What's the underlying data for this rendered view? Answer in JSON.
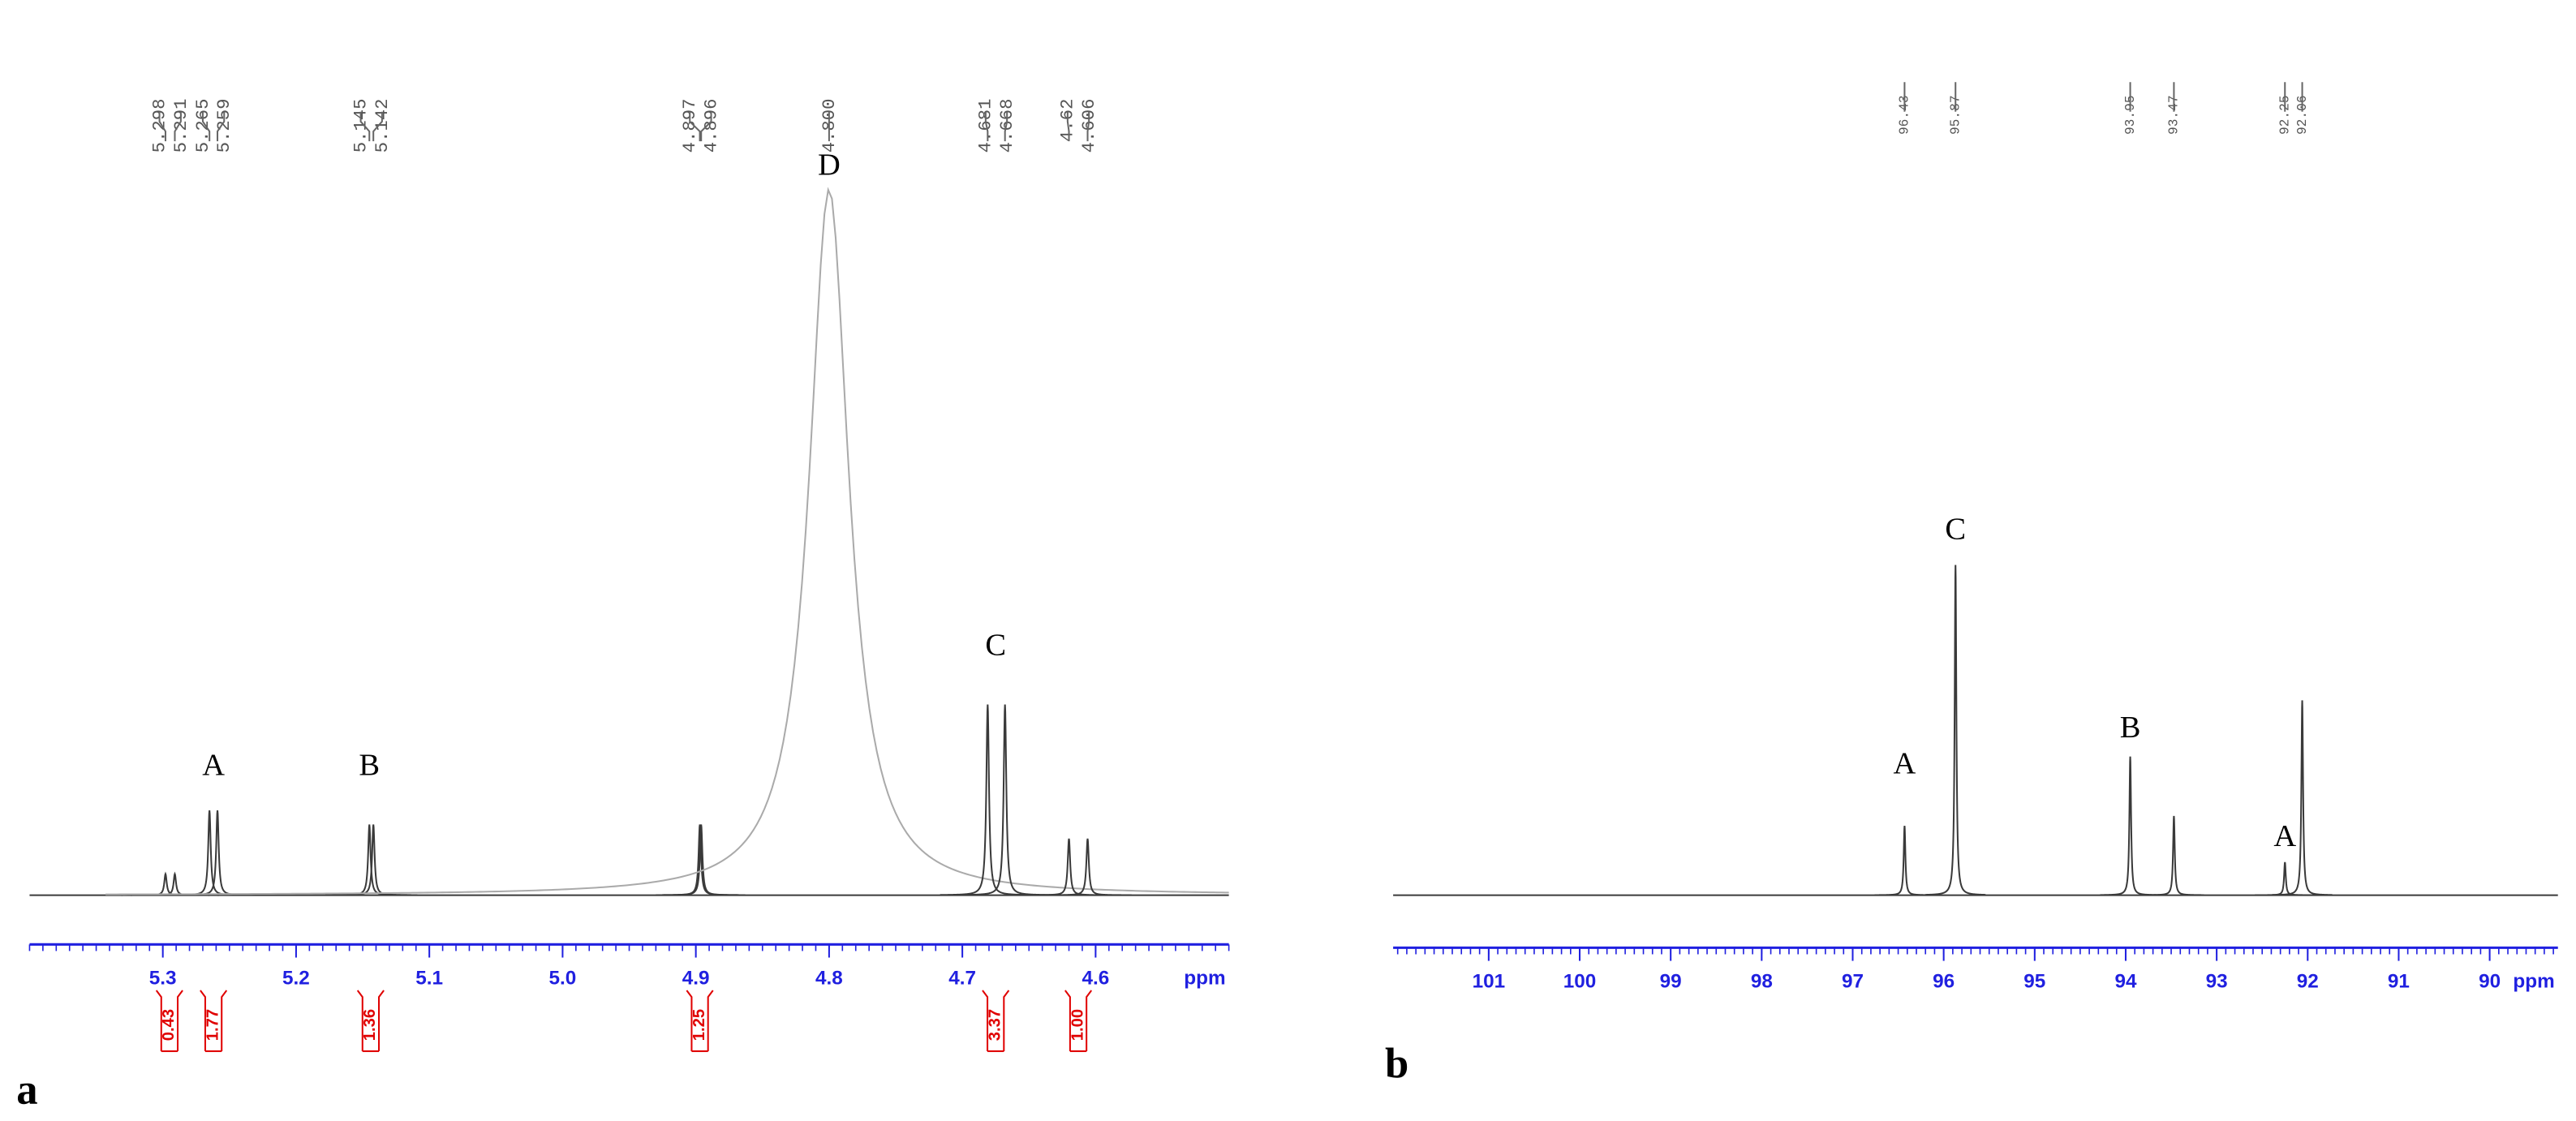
{
  "chart_data": [
    {
      "type": "spectrum",
      "panel_label": "a",
      "xlabel": "ppm",
      "xlim": [
        5.4,
        4.5
      ],
      "xticks": [
        5.3,
        5.2,
        5.1,
        {
          "value": 5,
          "label": "5.0"
        },
        4.9,
        4.8,
        4.7,
        4.6
      ],
      "peaks": [
        {
          "x": 5.298,
          "value": 3
        },
        {
          "x": 5.291,
          "value": 3
        },
        {
          "x": 5.265,
          "value": 12
        },
        {
          "x": 5.259,
          "value": 12
        },
        {
          "x": 5.145,
          "value": 10
        },
        {
          "x": 5.142,
          "value": 10
        },
        {
          "x": 4.897,
          "value": 10
        },
        {
          "x": 4.896,
          "value": 10
        },
        {
          "x": 4.8,
          "label": "4.800",
          "value": 100
        },
        {
          "x": 4.681,
          "value": 27
        },
        {
          "x": 4.668,
          "value": 27
        },
        {
          "x": 4.62,
          "value": 8
        },
        {
          "x": 4.606,
          "value": 8
        }
      ],
      "annotations": [
        {
          "text": "A",
          "x": 5.262,
          "y": 18
        },
        {
          "text": "B",
          "x": 5.145,
          "y": 18
        },
        {
          "text": "D",
          "x": 4.8,
          "y": 103
        },
        {
          "text": "C",
          "x": 4.675,
          "y": 35
        }
      ],
      "integrals": [
        {
          "x": 5.295,
          "value": 0.43
        },
        {
          "x": 5.262,
          "value": 1.77
        },
        {
          "x": 5.144,
          "value": 1.36
        },
        {
          "x": 4.897,
          "value": 1.25
        },
        {
          "x": 4.675,
          "value": 3.37
        },
        {
          "x": 4.613,
          "value": 1,
          "label": "1.00"
        }
      ],
      "colors": {
        "spectrum": "#3a3a3a",
        "axis": "#2020e0",
        "integral": "#e00000"
      }
    },
    {
      "type": "spectrum",
      "panel_label": "b",
      "xlabel": "ppm",
      "xlim": [
        102.05,
        89.25
      ],
      "xticks": [
        101,
        100,
        99,
        98,
        97,
        96,
        95,
        94,
        93,
        92,
        91,
        90
      ],
      "peaks": [
        {
          "x": 96.43,
          "value": 21
        },
        {
          "x": 95.87,
          "value": 100
        },
        {
          "x": 93.95,
          "value": 42
        },
        {
          "x": 93.47,
          "value": 24
        },
        {
          "x": 92.25,
          "value": 10
        },
        {
          "x": 92.06,
          "value": 59
        }
      ],
      "annotations": [
        {
          "text": "A",
          "x": 96.43,
          "y": 39
        },
        {
          "text": "C",
          "x": 95.87,
          "y": 110
        },
        {
          "text": "B",
          "x": 93.95,
          "y": 50
        },
        {
          "text": "A",
          "x": 92.25,
          "y": 17
        }
      ],
      "colors": {
        "spectrum": "#3a3a3a",
        "axis": "#2020e0"
      }
    }
  ]
}
